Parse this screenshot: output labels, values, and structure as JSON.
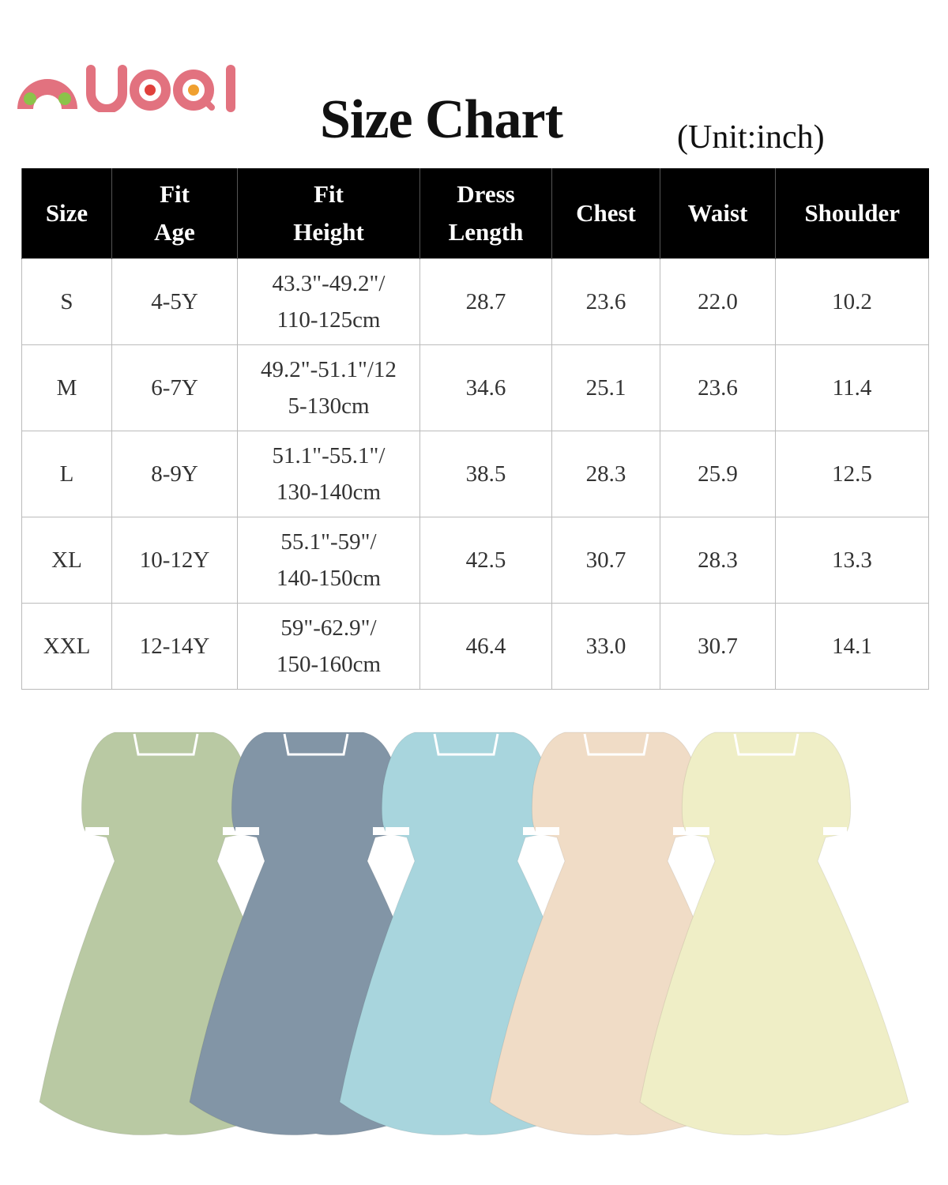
{
  "logo": {
    "text": "NUOQI",
    "colors": {
      "body": "#e2727f",
      "dot_green": "#8bc34a",
      "dot_red": "#e0403c",
      "dot_orange": "#f0a030"
    }
  },
  "title": "Size Chart",
  "unit": "(Unit:inch)",
  "table": {
    "headers": [
      "Size",
      "Fit Age",
      "Fit Height",
      "Dress Length",
      "Chest",
      "Waist",
      "Shoulder"
    ],
    "header_lines": [
      [
        "Size"
      ],
      [
        "Fit",
        "Age"
      ],
      [
        "Fit",
        "Height"
      ],
      [
        "Dress",
        "Length"
      ],
      [
        "Chest"
      ],
      [
        "Waist"
      ],
      [
        "Shoulder"
      ]
    ],
    "rows": [
      {
        "size": "S",
        "age": "4-5Y",
        "height1": "43.3\"-49.2\"/",
        "height2": "110-125cm",
        "length": "28.7",
        "chest": "23.6",
        "waist": "22.0",
        "shoulder": "10.2"
      },
      {
        "size": "M",
        "age": "6-7Y",
        "height1": "49.2\"-51.1\"/12",
        "height2": "5-130cm",
        "length": "34.6",
        "chest": "25.1",
        "waist": "23.6",
        "shoulder": "11.4"
      },
      {
        "size": "L",
        "age": "8-9Y",
        "height1": "51.1\"-55.1\"/",
        "height2": "130-140cm",
        "length": "38.5",
        "chest": "28.3",
        "waist": "25.9",
        "shoulder": "12.5"
      },
      {
        "size": "XL",
        "age": "10-12Y",
        "height1": "55.1\"-59\"/",
        "height2": "140-150cm",
        "length": "42.5",
        "chest": "30.7",
        "waist": "28.3",
        "shoulder": "13.3"
      },
      {
        "size": "XXL",
        "age": "12-14Y",
        "height1": "59\"-62.9\"/",
        "height2": "150-160cm",
        "length": "46.4",
        "chest": "33.0",
        "waist": "30.7",
        "shoulder": "14.1"
      }
    ]
  },
  "dress_colors": [
    "#b9c9a3",
    "#8295a6",
    "#a8d5dd",
    "#f0dcc6",
    "#efeec6"
  ]
}
